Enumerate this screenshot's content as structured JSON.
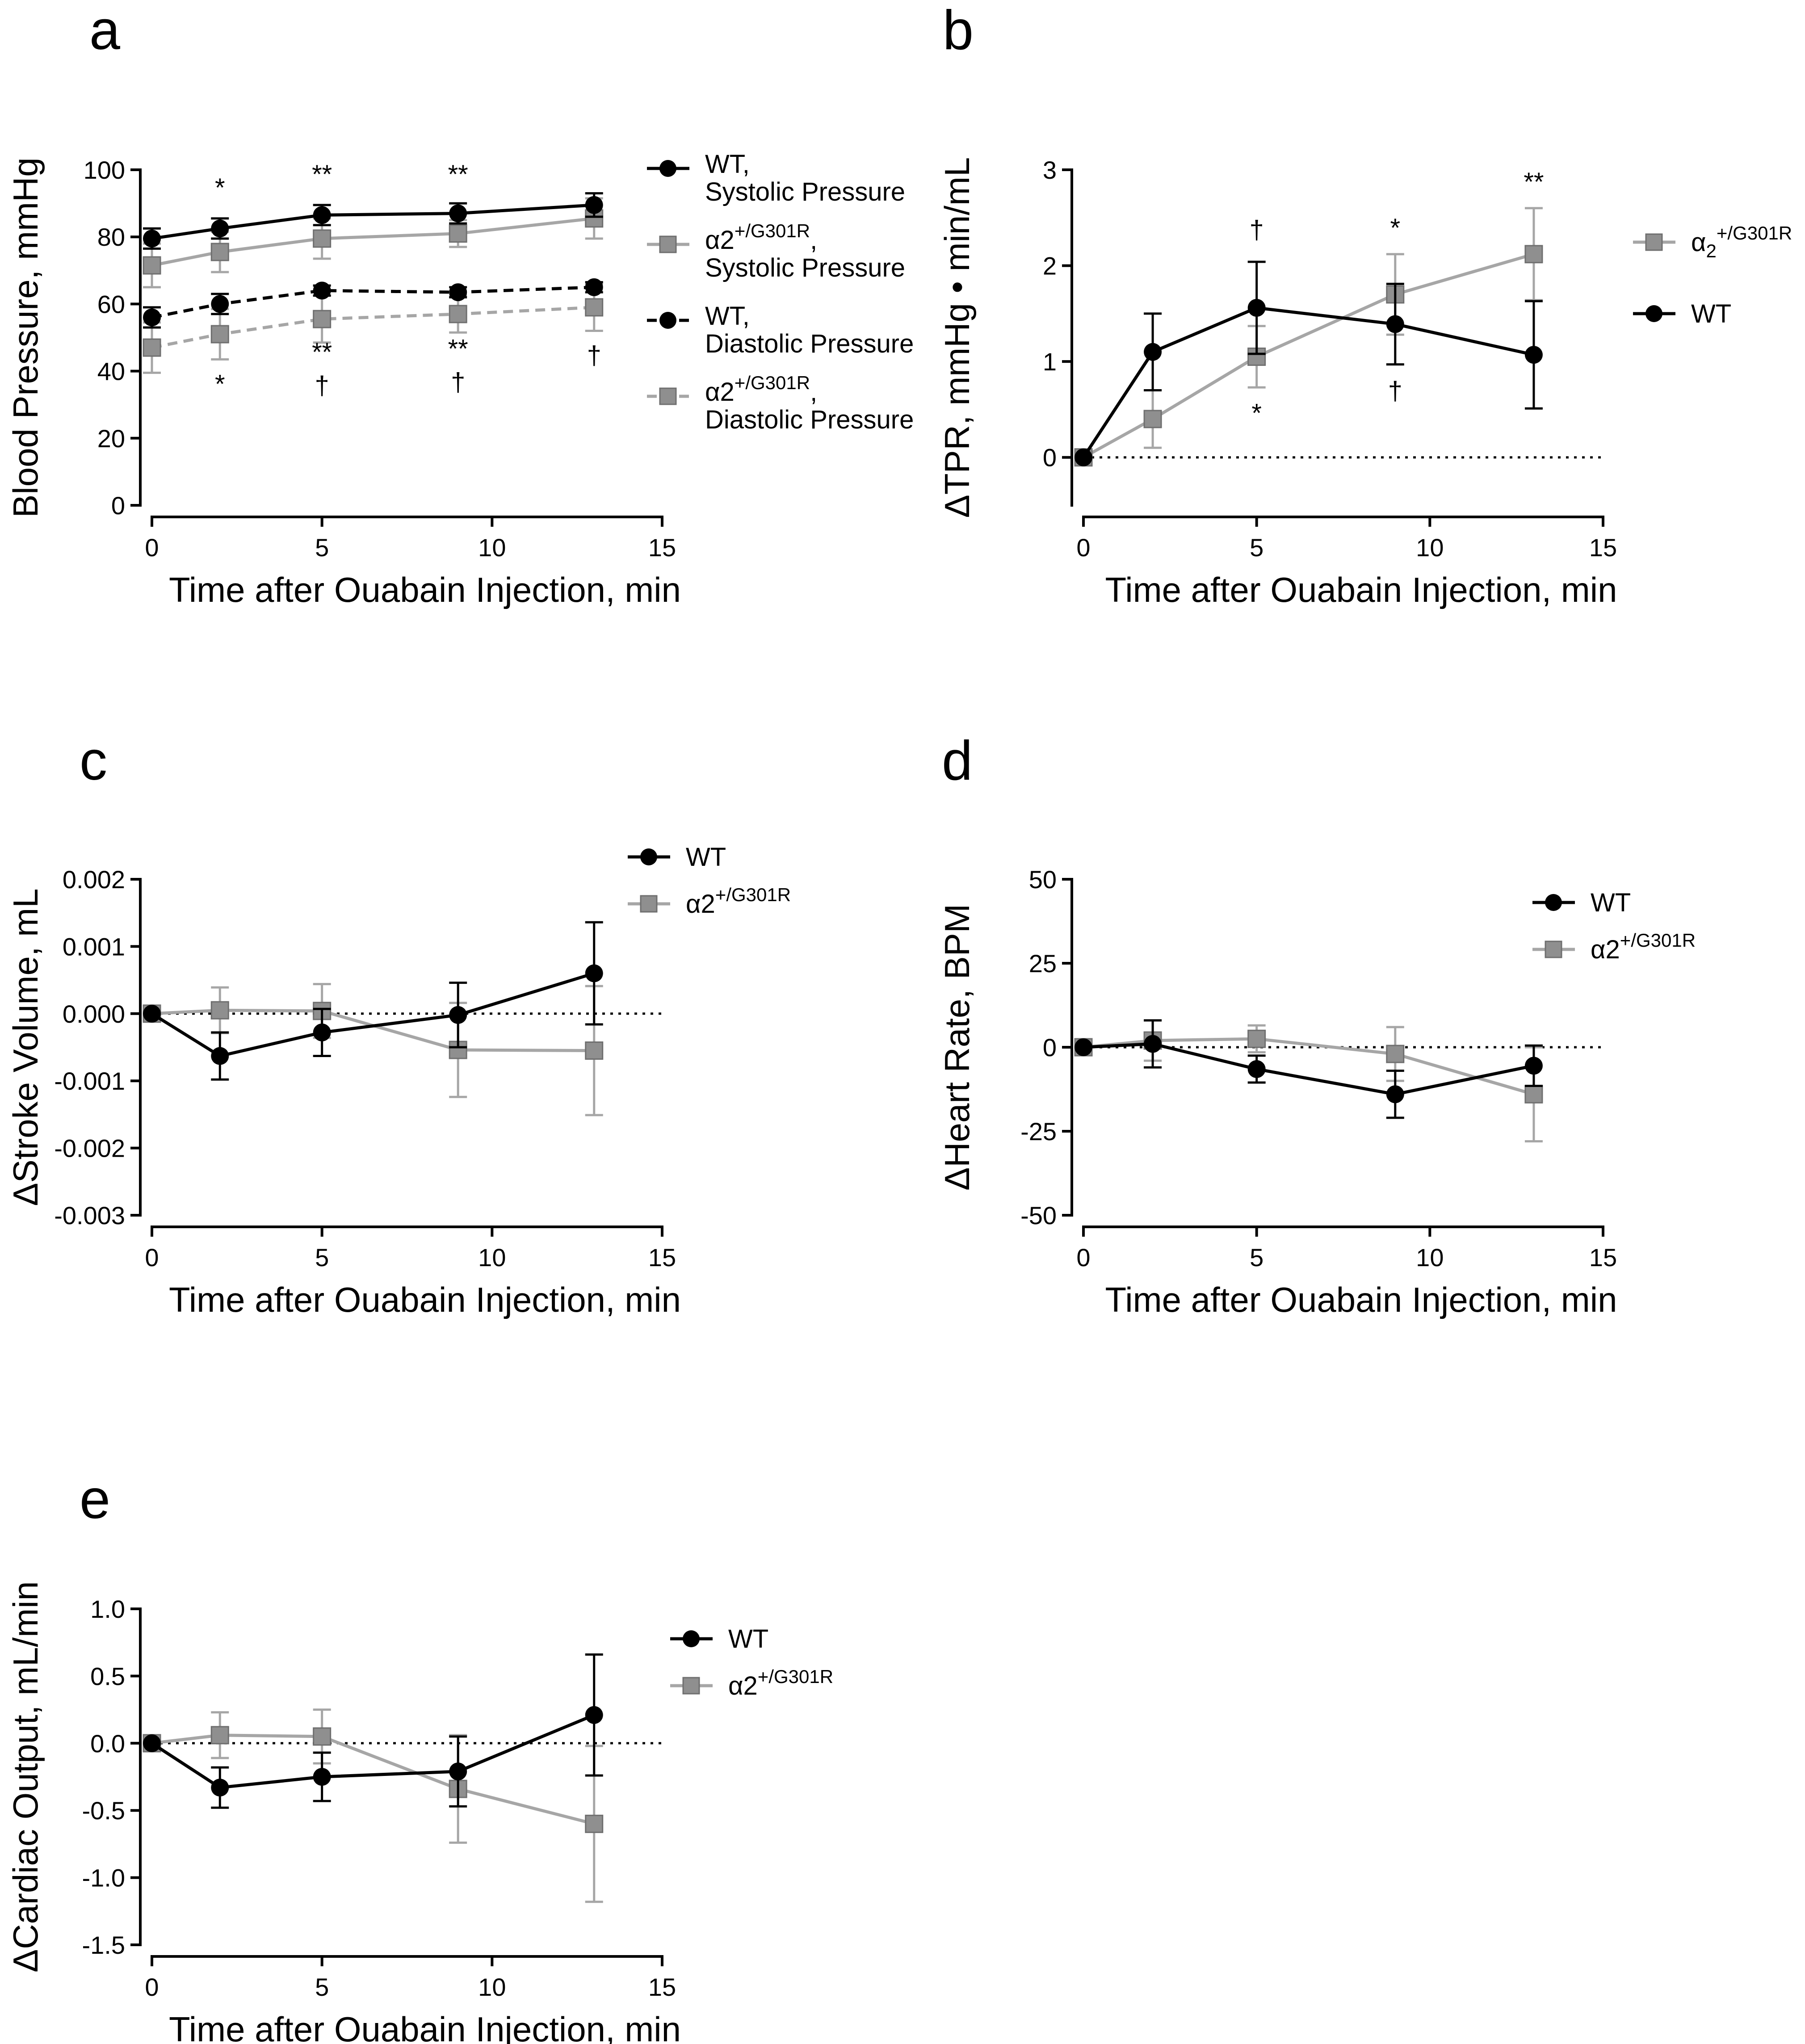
{
  "figure": {
    "panel_letters": [
      "a",
      "b",
      "c",
      "d",
      "e"
    ]
  },
  "colors": {
    "wt": "#000000",
    "mutant": "#a6a6a6",
    "mutant_fill": "#8f8f8f"
  },
  "chart_data": [
    {
      "panel": "a",
      "type": "line",
      "title": "",
      "xlabel": "Time after Ouabain Injection, min",
      "ylabel": "Blood Pressure, mmHg",
      "xlim": [
        0,
        15
      ],
      "ylim": [
        0,
        100
      ],
      "xticks": [
        0,
        5,
        10,
        15
      ],
      "yticks": [
        0,
        20,
        40,
        60,
        80,
        100
      ],
      "zero_line": false,
      "legend_position": "right",
      "series": [
        {
          "name": "WT, Systolic Pressure",
          "legend_lines": [
            "WT,",
            "Systolic Pressure"
          ],
          "marker": "circle",
          "color": "#000000",
          "dash": false,
          "x": [
            0,
            2,
            5,
            9,
            13
          ],
          "y": [
            79.5,
            82.5,
            86.5,
            87,
            89.5
          ],
          "err": [
            3,
            3,
            3,
            3,
            3.5
          ]
        },
        {
          "name": "α2+/G301R, Systolic Pressure",
          "legend_lines": [
            "α2+/G301R,",
            "Systolic Pressure"
          ],
          "marker": "square",
          "color": "#a6a6a6",
          "dash": false,
          "x": [
            0,
            2,
            5,
            9,
            13
          ],
          "y": [
            71.5,
            75.5,
            79.5,
            81,
            85.5
          ],
          "err": [
            6.5,
            6,
            6,
            4,
            6
          ]
        },
        {
          "name": "WT, Diastolic Pressure",
          "legend_lines": [
            "WT,",
            "Diastolic Pressure"
          ],
          "marker": "circle",
          "color": "#000000",
          "dash": true,
          "x": [
            0,
            2,
            5,
            9,
            13
          ],
          "y": [
            56,
            60,
            64,
            63.5,
            65
          ],
          "err": [
            3,
            3,
            1.5,
            1.5,
            1.5
          ]
        },
        {
          "name": "α2+/G301R, Diastolic Pressure",
          "legend_lines": [
            "α2+/G301R,",
            "Diastolic Pressure"
          ],
          "marker": "square",
          "color": "#a6a6a6",
          "dash": true,
          "x": [
            0,
            2,
            5,
            9,
            13
          ],
          "y": [
            47,
            51,
            55.5,
            57,
            59
          ],
          "err": [
            7.5,
            7.5,
            7,
            5.5,
            7
          ]
        }
      ],
      "annotations": [
        {
          "x": 2,
          "y": 92,
          "text": "*"
        },
        {
          "x": 5,
          "y": 96,
          "text": "**"
        },
        {
          "x": 9,
          "y": 96,
          "text": "**"
        },
        {
          "x": 2,
          "y": 33.5,
          "text": "*"
        },
        {
          "x": 5,
          "y": 43,
          "text": "**"
        },
        {
          "x": 5,
          "y": 33,
          "text": "†"
        },
        {
          "x": 9,
          "y": 44,
          "text": "**"
        },
        {
          "x": 9,
          "y": 34,
          "text": "†"
        },
        {
          "x": 13,
          "y": 42,
          "text": "†"
        }
      ]
    },
    {
      "panel": "b",
      "type": "line",
      "title": "",
      "xlabel": "Time after Ouabain Injection, min",
      "ylabel": "ΔTPR, mmHg • min/mL",
      "xlim": [
        0,
        15
      ],
      "ylim": [
        -0.5,
        3
      ],
      "xticks": [
        0,
        5,
        10,
        15
      ],
      "yticks": [
        0,
        1,
        2,
        3
      ],
      "zero_line": true,
      "legend_position": "right",
      "series": [
        {
          "name": "α2+/G301R",
          "legend_base": "α",
          "legend_sub": "2",
          "legend_sup": "+/G301R",
          "marker": "square",
          "color": "#a6a6a6",
          "x": [
            0,
            2,
            5,
            9,
            13
          ],
          "y": [
            0,
            0.4,
            1.05,
            1.7,
            2.12
          ],
          "err": [
            0,
            0.3,
            0.32,
            0.42,
            0.48
          ]
        },
        {
          "name": "WT",
          "legend_base": "WT",
          "marker": "circle",
          "color": "#000000",
          "x": [
            0,
            2,
            5,
            9,
            13
          ],
          "y": [
            0,
            1.1,
            1.56,
            1.39,
            1.07
          ],
          "err": [
            0,
            0.4,
            0.48,
            0.42,
            0.56
          ]
        }
      ],
      "annotations": [
        {
          "x": 5,
          "y": 2.28,
          "text": "†"
        },
        {
          "x": 5,
          "y": 0.37,
          "text": "*"
        },
        {
          "x": 9,
          "y": 2.3,
          "text": "*"
        },
        {
          "x": 9,
          "y": 0.6,
          "text": "†"
        },
        {
          "x": 13,
          "y": 2.78,
          "text": "**"
        }
      ]
    },
    {
      "panel": "c",
      "type": "line",
      "title": "",
      "xlabel": "Time after Ouabain Injection, min",
      "ylabel": "ΔStroke Volume, mL",
      "xlim": [
        0,
        15
      ],
      "ylim": [
        -0.003,
        0.002
      ],
      "xticks": [
        0,
        5,
        10,
        15
      ],
      "yticks": [
        -0.003,
        -0.002,
        -0.001,
        0.0,
        0.001,
        0.002
      ],
      "ytick_labels": [
        "-0.003",
        "-0.002",
        "-0.001",
        "0.000",
        "0.001",
        "0.002"
      ],
      "zero_line": true,
      "legend_position": "top-right",
      "series": [
        {
          "name": "WT",
          "legend_base": "WT",
          "marker": "circle",
          "color": "#000000",
          "x": [
            0,
            2,
            5,
            9,
            13
          ],
          "y": [
            0,
            -0.00063,
            -0.00028,
            -2e-05,
            0.0006
          ],
          "err": [
            0,
            0.00035,
            0.00035,
            0.00048,
            0.00076
          ]
        },
        {
          "name": "α2+/G301R",
          "legend_base": "α2",
          "legend_sup": "+/G301R",
          "marker": "square",
          "color": "#a6a6a6",
          "x": [
            0,
            2,
            5,
            9,
            13
          ],
          "y": [
            0,
            5e-05,
            4e-05,
            -0.00054,
            -0.00055
          ],
          "err": [
            0,
            0.00034,
            0.0004,
            0.0007,
            0.00096
          ]
        }
      ],
      "annotations": []
    },
    {
      "panel": "d",
      "type": "line",
      "title": "",
      "xlabel": "Time after Ouabain Injection, min",
      "ylabel": "ΔHeart  Rate, BPM",
      "xlim": [
        0,
        15
      ],
      "ylim": [
        -50,
        50
      ],
      "xticks": [
        0,
        5,
        10,
        15
      ],
      "yticks": [
        -50,
        -25,
        0,
        25,
        50
      ],
      "zero_line": true,
      "legend_position": "top-right",
      "series": [
        {
          "name": "WT",
          "legend_base": "WT",
          "marker": "circle",
          "color": "#000000",
          "x": [
            0,
            2,
            5,
            9,
            13
          ],
          "y": [
            0,
            1,
            -6.5,
            -14,
            -5.5
          ],
          "err": [
            0,
            7,
            4,
            7,
            6
          ]
        },
        {
          "name": "α2+/G301R",
          "legend_base": "α2",
          "legend_sup": "+/G301R",
          "marker": "square",
          "color": "#a6a6a6",
          "x": [
            0,
            2,
            5,
            9,
            13
          ],
          "y": [
            0,
            2,
            2.5,
            -2,
            -14
          ],
          "err": [
            0,
            6,
            4,
            8,
            14
          ]
        }
      ],
      "annotations": []
    },
    {
      "panel": "e",
      "type": "line",
      "title": "",
      "xlabel": "Time after Ouabain Injection, min",
      "ylabel": "ΔCardiac Output, mL/min",
      "xlim": [
        0,
        15
      ],
      "ylim": [
        -1.5,
        1.0
      ],
      "xticks": [
        0,
        5,
        10,
        15
      ],
      "yticks": [
        -1.5,
        -1.0,
        -0.5,
        0.0,
        0.5,
        1.0
      ],
      "ytick_labels": [
        "-1.5",
        "-1.0",
        "-0.5",
        "0.0",
        "0.5",
        "1.0"
      ],
      "zero_line": true,
      "legend_position": "top-right",
      "series": [
        {
          "name": "WT",
          "legend_base": "WT",
          "marker": "circle",
          "color": "#000000",
          "x": [
            0,
            2,
            5,
            9,
            13
          ],
          "y": [
            0,
            -0.33,
            -0.25,
            -0.21,
            0.21
          ],
          "err": [
            0,
            0.15,
            0.18,
            0.26,
            0.45
          ]
        },
        {
          "name": "α2+/G301R",
          "legend_base": "α2",
          "legend_sup": "+/G301R",
          "marker": "square",
          "color": "#a6a6a6",
          "x": [
            0,
            2,
            5,
            9,
            13
          ],
          "y": [
            0,
            0.06,
            0.05,
            -0.34,
            -0.6
          ],
          "err": [
            0,
            0.17,
            0.2,
            0.4,
            0.58
          ]
        }
      ],
      "annotations": []
    }
  ]
}
